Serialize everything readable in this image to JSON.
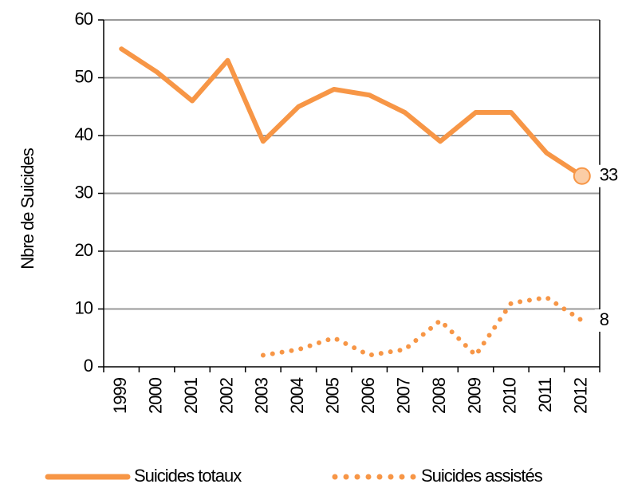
{
  "chart_data": {
    "type": "line",
    "y_label": "Nbre de Suicides",
    "categories": [
      "1999",
      "2000",
      "2001",
      "2002",
      "2003",
      "2004",
      "2005",
      "2006",
      "2007",
      "2008",
      "2009",
      "2010",
      "2011",
      "2012"
    ],
    "series": [
      {
        "name": "Suicides totaux",
        "color": "#f79646",
        "style": "solid",
        "end_marker": true,
        "values": [
          55,
          51,
          46,
          53,
          39,
          45,
          48,
          47,
          44,
          39,
          44,
          44,
          37,
          33
        ]
      },
      {
        "name": "Suicides assistés",
        "color": "#f79646",
        "style": "dotted",
        "end_marker": false,
        "values": [
          null,
          null,
          null,
          null,
          2,
          3,
          5,
          2,
          3,
          8,
          2,
          11,
          12,
          8
        ]
      }
    ],
    "ylim": [
      0,
      60
    ],
    "yticks": [
      0,
      10,
      20,
      30,
      40,
      50,
      60
    ],
    "grid": true,
    "legend": "bottom"
  }
}
